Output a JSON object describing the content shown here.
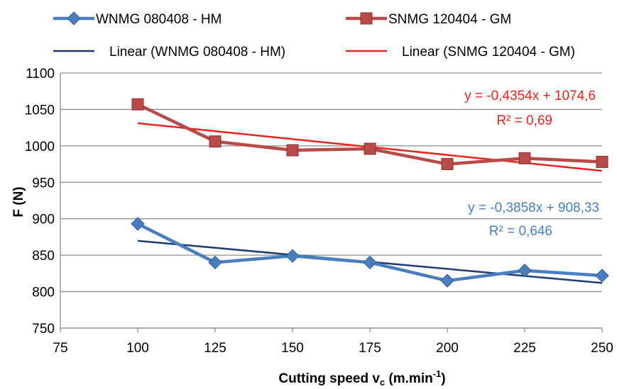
{
  "chart_data": {
    "type": "line",
    "x": [
      100,
      125,
      150,
      175,
      200,
      225,
      250
    ],
    "series": [
      {
        "name": "WNMG 080408 - HM",
        "values": [
          893,
          840,
          849,
          840,
          815,
          829,
          822
        ],
        "color": "#4a7dbd",
        "marker": "diamond"
      },
      {
        "name": "SNMG 120404 - GM",
        "values": [
          1057,
          1006,
          994,
          996,
          975,
          983,
          978
        ],
        "color": "#b84a47",
        "marker": "square"
      }
    ],
    "trendlines": [
      {
        "name": "Linear  (WNMG 080408 - HM)",
        "slope": -0.3858,
        "intercept": 908.33,
        "color": "#1f3a6e",
        "equation": "y = -0,3858x + 908,33",
        "r2": "R² = 0,646"
      },
      {
        "name": "Linear  (SNMG 120404 - GM)",
        "slope": -0.4354,
        "intercept": 1074.6,
        "color": "#e8231f",
        "equation": "y = -0,4354x + 1074,6",
        "r2": "R² = 0,69"
      }
    ],
    "xlim": [
      75,
      250
    ],
    "ylim": [
      750,
      1100
    ],
    "xticks": [
      "75",
      "100",
      "125",
      "150",
      "175",
      "200",
      "225",
      "250"
    ],
    "yticks": [
      "750",
      "800",
      "850",
      "900",
      "950",
      "1000",
      "1050",
      "1100"
    ],
    "xlabel_main": "Cutting speed v",
    "xlabel_sub": "c",
    "xlabel_units": " (m.min",
    "xlabel_sup": "-1",
    "xlabel_end": ")",
    "ylabel": "F (N)",
    "grid": "horizontal",
    "legend_position": "top"
  }
}
